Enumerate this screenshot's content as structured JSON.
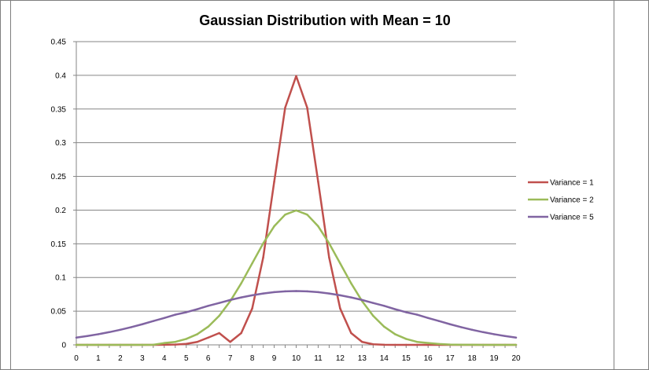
{
  "chart_data": {
    "type": "line",
    "title": "Gaussian Distribution with Mean = 10",
    "xlabel": "",
    "ylabel": "",
    "x": [
      0,
      0.5,
      1,
      1.5,
      2,
      2.5,
      3,
      3.5,
      4,
      4.5,
      5,
      5.5,
      6,
      6.5,
      7,
      7.5,
      8,
      8.5,
      9,
      9.5,
      10,
      10.5,
      11,
      11.5,
      12,
      12.5,
      13,
      13.5,
      14,
      14.5,
      15,
      15.5,
      16,
      16.5,
      17,
      17.5,
      18,
      18.5,
      19,
      19.5,
      20
    ],
    "xticks": [
      "0",
      "1",
      "2",
      "3",
      "4",
      "5",
      "6",
      "7",
      "8",
      "9",
      "10",
      "11",
      "12",
      "13",
      "14",
      "15",
      "16",
      "17",
      "18",
      "19",
      "20"
    ],
    "yticks": [
      "0",
      "0.05",
      "0.1",
      "0.15",
      "0.2",
      "0.25",
      "0.3",
      "0.35",
      "0.4",
      "0.45"
    ],
    "xlim": [
      0,
      20
    ],
    "ylim": [
      0,
      0.45
    ],
    "grid": "horizontal",
    "legend_position": "right",
    "series": [
      {
        "name": "Variance = 1",
        "color": "#c0504d",
        "values": [
          0,
          0,
          0,
          0,
          0,
          0,
          0,
          0,
          0.0001,
          0.0004,
          0.0015,
          0.0044,
          0.0108,
          0.0175,
          0.0044,
          0.0175,
          0.054,
          0.1295,
          0.242,
          0.3521,
          0.3989,
          0.3521,
          0.242,
          0.1295,
          0.054,
          0.0175,
          0.0044,
          0.0009,
          0.0001,
          0,
          0,
          0,
          0,
          0,
          0,
          0,
          0,
          0,
          0,
          0,
          0
        ]
      },
      {
        "name": "Variance = 2",
        "color": "#9bbb59",
        "values": [
          0,
          0,
          0,
          0,
          0,
          0,
          0,
          0.0001,
          0.0027,
          0.0044,
          0.0088,
          0.0158,
          0.027,
          0.0431,
          0.0648,
          0.0913,
          0.121,
          0.1506,
          0.176,
          0.1933,
          0.1995,
          0.1933,
          0.176,
          0.1506,
          0.121,
          0.0913,
          0.0648,
          0.0431,
          0.027,
          0.0158,
          0.0088,
          0.0044,
          0.0027,
          0.0013,
          0.0005,
          0.0002,
          0.0001,
          0,
          0,
          0,
          0
        ]
      },
      {
        "name": "Variance = 5",
        "color": "#8064a2",
        "values": [
          0.0108,
          0.0131,
          0.0158,
          0.0189,
          0.0224,
          0.0263,
          0.0306,
          0.0353,
          0.0399,
          0.0448,
          0.0484,
          0.0529,
          0.0579,
          0.0622,
          0.0666,
          0.0704,
          0.0736,
          0.0762,
          0.0782,
          0.0794,
          0.0798,
          0.0794,
          0.0782,
          0.0762,
          0.0736,
          0.0704,
          0.0666,
          0.0622,
          0.0579,
          0.0529,
          0.0484,
          0.0448,
          0.0399,
          0.0353,
          0.0306,
          0.0263,
          0.0224,
          0.0189,
          0.0158,
          0.0131,
          0.0108
        ]
      }
    ]
  }
}
